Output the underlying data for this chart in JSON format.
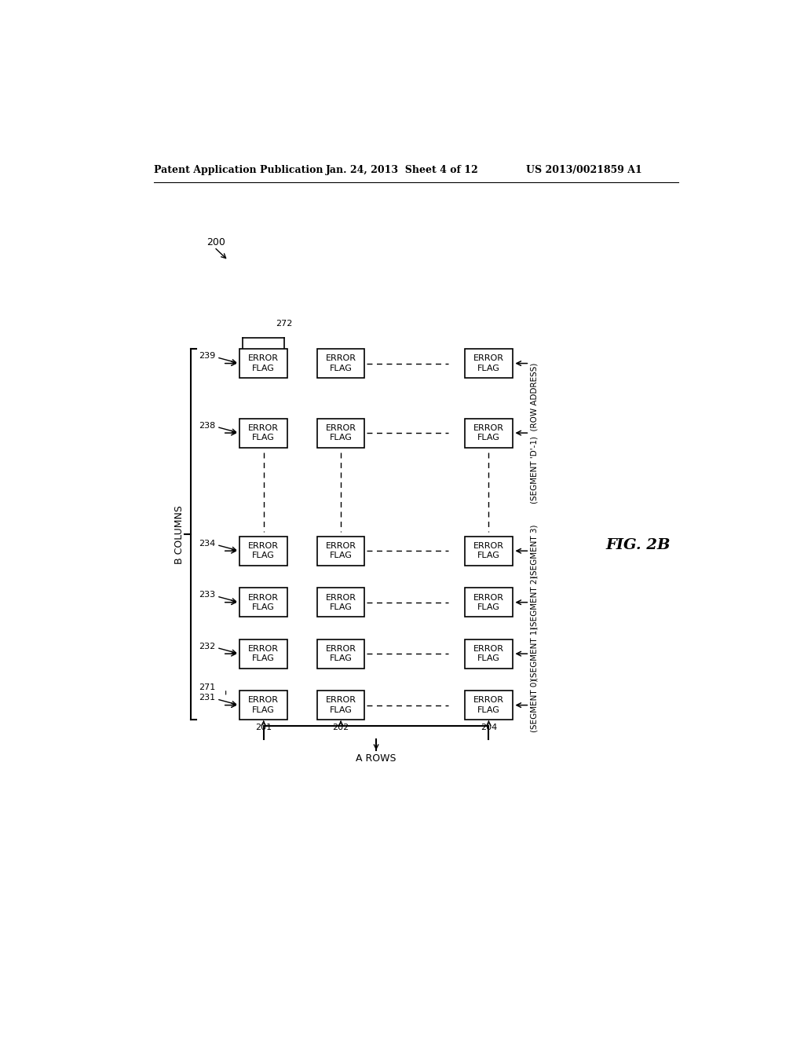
{
  "bg_color": "#ffffff",
  "header_left": "Patent Application Publication",
  "header_center": "Jan. 24, 2013  Sheet 4 of 12",
  "header_right": "US 2013/0021859 A1",
  "fig_label": "FIG. 2B",
  "box_label": "ERROR\nFLAG",
  "row_ids": [
    "231",
    "232",
    "233",
    "234",
    "238",
    "239"
  ],
  "row_brace_labels": [
    "271",
    "",
    "",
    "",
    "",
    "272"
  ],
  "seg_labels": [
    "(SEGMENT 0)",
    "(SEGMENT 1)",
    "(SEGMENT 2)",
    "(SEGMENT 3)",
    "(SEGMENT 'D'-1)  (ROW ADDRESS)",
    ""
  ],
  "col_labels": [
    "201",
    "202",
    "204"
  ],
  "b_columns_label": "B COLUMNS",
  "a_rows_label": "A ROWS",
  "ref_200": "200"
}
